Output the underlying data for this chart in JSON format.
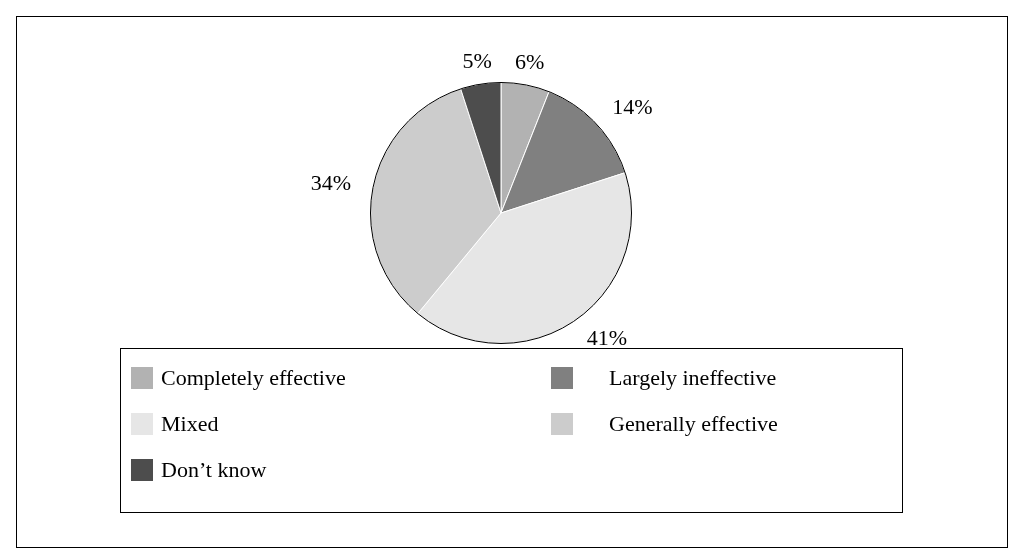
{
  "chart_data": {
    "type": "pie",
    "categories": [
      "Completely effective",
      "Largely ineffective",
      "Mixed",
      "Generally effective",
      "Don’t know"
    ],
    "values": [
      6,
      14,
      41,
      34,
      5
    ],
    "colors": [
      "#b2b2b2",
      "#808080",
      "#e6e6e6",
      "#cccccc",
      "#4d4d4d"
    ],
    "value_labels": [
      "6%",
      "14%",
      "41%",
      "34%",
      "5%"
    ],
    "legend": "bottom"
  }
}
